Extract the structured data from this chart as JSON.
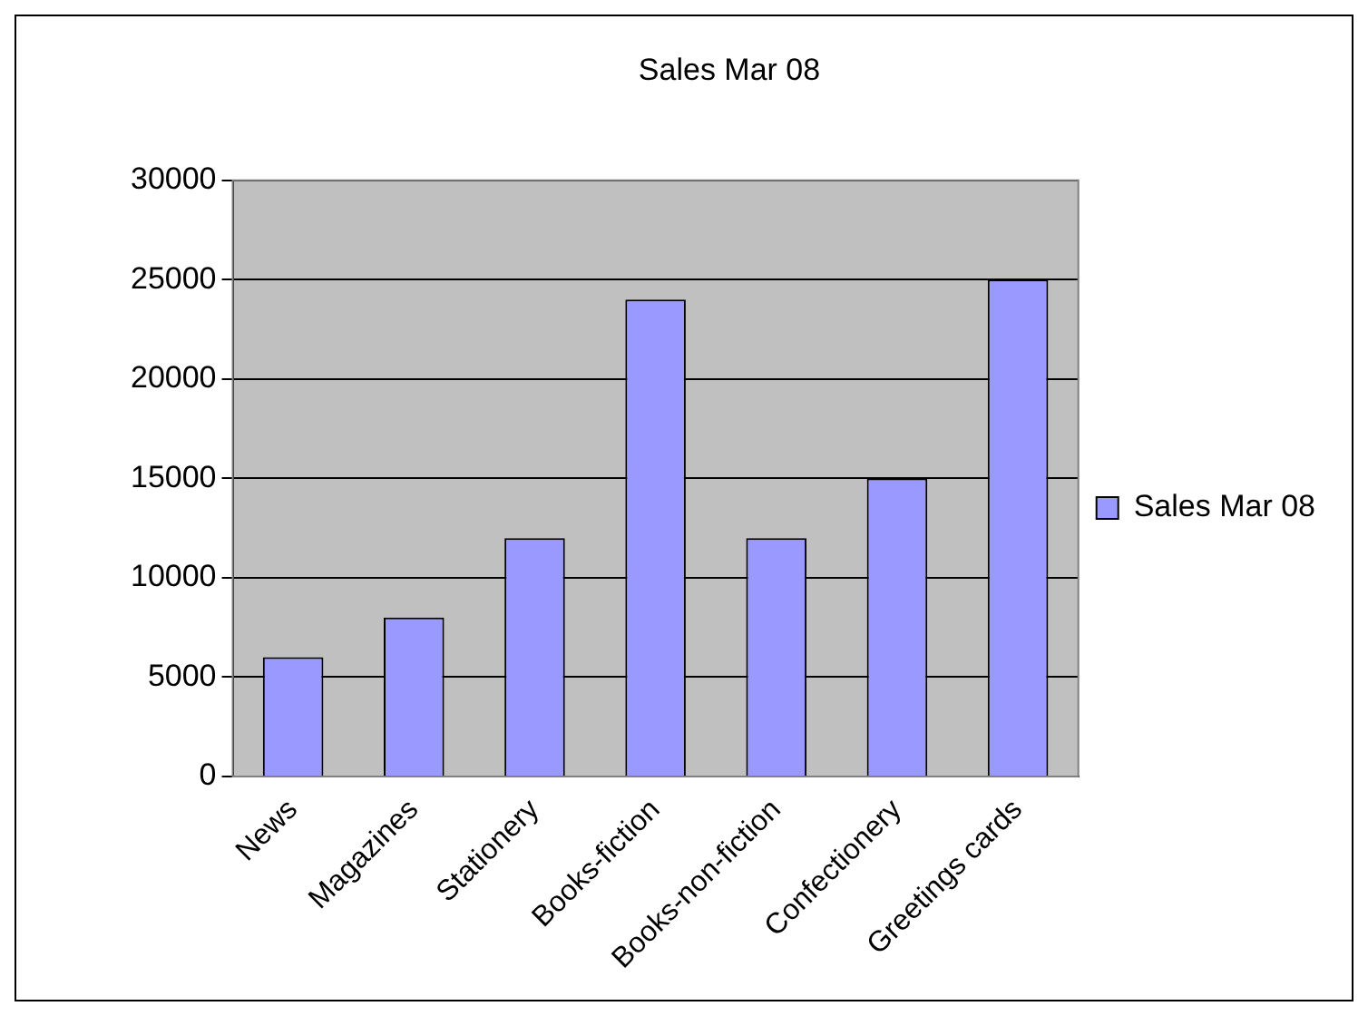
{
  "chart_data": {
    "type": "bar",
    "title": "Sales Mar 08",
    "categories": [
      "News",
      "Magazines",
      "Stationery",
      "Books-fiction",
      "Books-non-fiction",
      "Confectionery",
      "Greetings cards"
    ],
    "series": [
      {
        "name": "Sales Mar 08",
        "color": "#9999ff",
        "values": [
          6000,
          8000,
          12000,
          24000,
          12000,
          15000,
          25000
        ]
      }
    ],
    "ylim": [
      0,
      30000
    ],
    "yticks": [
      0,
      5000,
      10000,
      15000,
      20000,
      25000,
      30000
    ],
    "grid": "y",
    "legend": "right"
  }
}
